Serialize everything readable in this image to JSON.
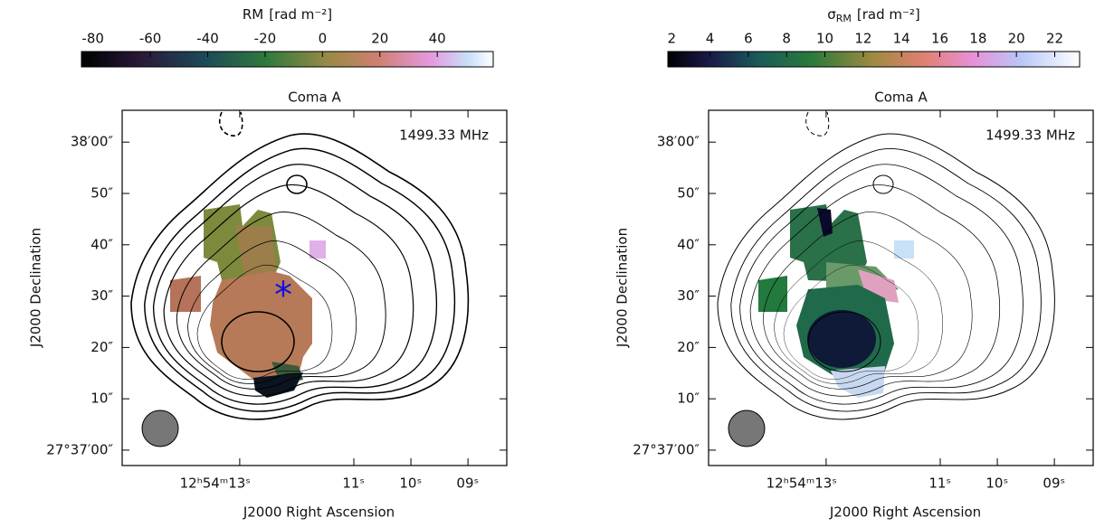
{
  "panels": [
    {
      "colorbar": {
        "symbol": "RM",
        "unit": "[rad m⁻²]",
        "range": [
          -84,
          59.5
        ],
        "ticks": [
          -80,
          -60,
          -40,
          -20,
          0,
          20,
          40
        ]
      },
      "title": "Coma A",
      "annotation": "1499.33 MHz",
      "x_label": "J2000 Right Ascension",
      "y_label": "J2000 Declination",
      "x_range": [
        15.06,
        8.32
      ],
      "x_ticks": [
        {
          "value": 13,
          "label": "12ʰ54ᵐ13ˢ"
        },
        {
          "value": 11,
          "label": "11ˢ"
        },
        {
          "value": 10,
          "label": "10ˢ"
        },
        {
          "value": 9,
          "label": "09ˢ"
        }
      ],
      "y_range": [
        -3,
        66.2
      ],
      "y_ticks": [
        {
          "value": 0,
          "label": "27°37′00″"
        },
        {
          "value": 10,
          "label": "10″"
        },
        {
          "value": 20,
          "label": "20″"
        },
        {
          "value": 30,
          "label": "30″"
        },
        {
          "value": 40,
          "label": "40″"
        },
        {
          "value": 50,
          "label": "50″"
        },
        {
          "value": 60,
          "label": "38′00″"
        }
      ]
    },
    {
      "colorbar": {
        "symbol": "σ",
        "subscript": "RM",
        "unit": "[rad m⁻²]",
        "range": [
          1.8,
          23.3
        ],
        "ticks": [
          2,
          4,
          6,
          8,
          10,
          12,
          14,
          16,
          18,
          20,
          22
        ]
      },
      "title": "Coma A",
      "annotation": "1499.33 MHz",
      "x_label": "J2000 Right Ascension",
      "y_label": "J2000 Declination",
      "x_range": [
        15.06,
        8.32
      ],
      "x_ticks": [
        {
          "value": 13,
          "label": "12ʰ54ᵐ13ˢ"
        },
        {
          "value": 11,
          "label": "11ˢ"
        },
        {
          "value": 10,
          "label": "10ˢ"
        },
        {
          "value": 9,
          "label": "09ˢ"
        }
      ],
      "y_range": [
        -3,
        66.2
      ],
      "y_ticks": [
        {
          "value": 0,
          "label": "27°37′00″"
        },
        {
          "value": 10,
          "label": "10″"
        },
        {
          "value": 20,
          "label": "20″"
        },
        {
          "value": 30,
          "label": "30″"
        },
        {
          "value": 40,
          "label": "40″"
        },
        {
          "value": 50,
          "label": "50″"
        },
        {
          "value": 60,
          "label": "38′00″"
        }
      ]
    }
  ]
}
